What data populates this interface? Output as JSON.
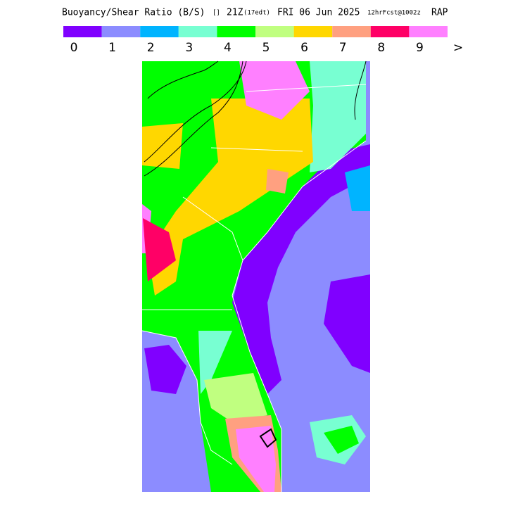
{
  "title": [
    "Buoyancy/Shear Ratio (B/S)",
    "[]",
    "21Z",
    "(17edt)",
    "FRI 06 Jun 2025",
    "12hrFcst@1002z",
    "RAP"
  ],
  "legend": {
    "colors": [
      "#8000ff",
      "#8c8cff",
      "#00b4ff",
      "#78ffd2",
      "#00ff00",
      "#c0ff80",
      "#ffd700",
      "#ffa080",
      "#ff0066",
      "#ff80ff"
    ],
    "labels": [
      "0",
      "1",
      "2",
      "3",
      "4",
      "5",
      "6",
      "7",
      "8",
      "9",
      ">"
    ]
  }
}
